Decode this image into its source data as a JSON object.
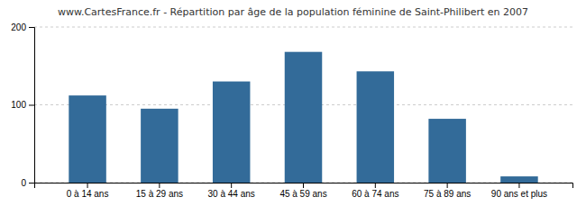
{
  "chart_data": {
    "type": "bar",
    "title": "www.CartesFrance.fr - Répartition par âge de la population féminine de Saint-Philibert en 2007",
    "categories": [
      "0 à 14 ans",
      "15 à 29 ans",
      "30 à 44 ans",
      "45 à 59 ans",
      "60 à 74 ans",
      "75 à 89 ans",
      "90 ans et plus"
    ],
    "values": [
      112,
      95,
      130,
      168,
      143,
      82,
      8
    ],
    "color": "#336b99",
    "ylim": [
      0,
      200
    ],
    "yticks": [
      0,
      100,
      200
    ],
    "grid": true
  }
}
